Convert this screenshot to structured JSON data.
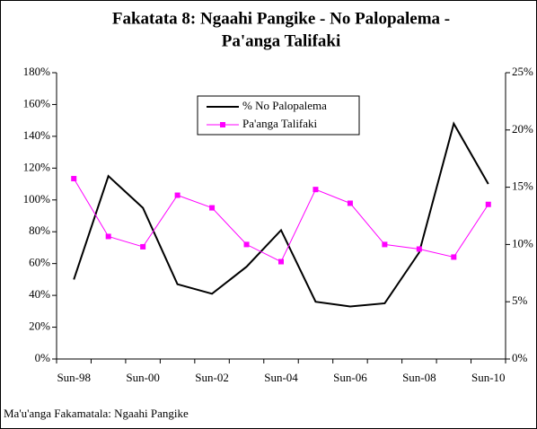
{
  "chart_data": {
    "type": "line",
    "title": [
      "Fakatata 8: Ngaahi Pangike - No Palopalema -",
      "Pa'anga Talifaki"
    ],
    "categories": [
      "Sun-98",
      null,
      "Sun-00",
      null,
      "Sun-02",
      null,
      "Sun-04",
      null,
      "Sun-06",
      null,
      "Sun-08",
      null,
      "Sun-10"
    ],
    "series": [
      {
        "name": "% No Palopalema",
        "color": "#000000",
        "values": [
          50,
          115,
          95,
          47,
          41,
          58,
          81,
          36,
          33,
          35,
          67,
          148,
          110
        ]
      },
      {
        "name": "Pa'anga Talifaki",
        "color": "#ff00ff",
        "axis": "y2",
        "marker": "square",
        "values": [
          15.75,
          10.7,
          9.8,
          14.3,
          13.2,
          10,
          8.5,
          14.8,
          13.6,
          10,
          9.6,
          8.9,
          13.5
        ]
      }
    ],
    "ylim": [
      0,
      180
    ],
    "yticks": [
      {
        "value": 0,
        "label": "0%"
      },
      {
        "value": 20,
        "label": "20%"
      },
      {
        "value": 40,
        "label": "40%"
      },
      {
        "value": 60,
        "label": "60%"
      },
      {
        "value": 80,
        "label": "80%"
      },
      {
        "value": 100,
        "label": "100%"
      },
      {
        "value": 120,
        "label": "120%"
      },
      {
        "value": 140,
        "label": "140%"
      },
      {
        "value": 160,
        "label": "160%"
      },
      {
        "value": 180,
        "label": "180%"
      }
    ],
    "y2lim": [
      0,
      25
    ],
    "y2ticks": [
      {
        "value": 0,
        "label": "0%"
      },
      {
        "value": 5,
        "label": "5%"
      },
      {
        "value": 10,
        "label": "10%"
      },
      {
        "value": 15,
        "label": "15%"
      },
      {
        "value": 20,
        "label": "20%"
      },
      {
        "value": 25,
        "label": "25%"
      }
    ],
    "legend": "top-center",
    "source": "Ma'u'anga Fakamatala: Ngaahi Pangike"
  }
}
